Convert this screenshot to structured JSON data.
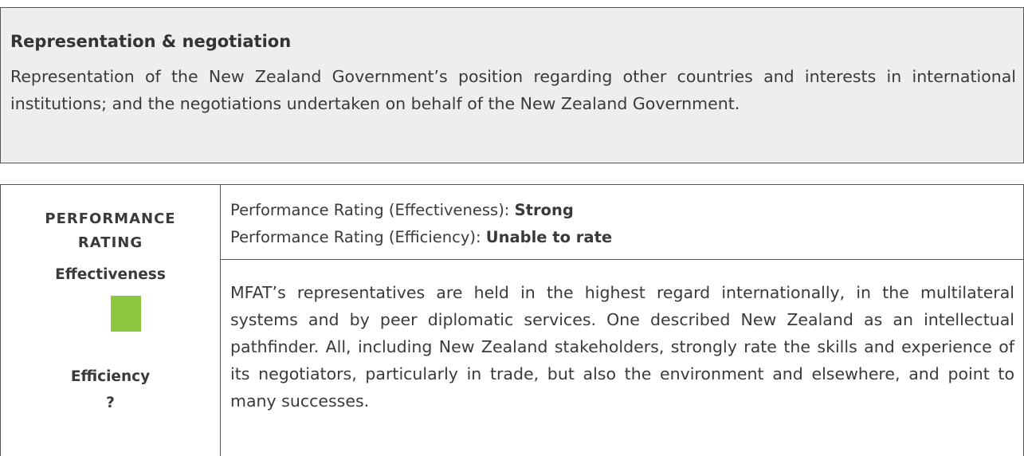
{
  "section": {
    "title": "Representation & negotiation",
    "description": "Representation of the New Zealand Government’s position regarding other countries and interests in international institutions; and the negotiations undertaken on behalf of the New Zealand Government."
  },
  "table": {
    "left": {
      "heading": "PERFORMANCE RATING",
      "effectiveness_label": "Effectiveness",
      "efficiency_label": "Efficiency",
      "efficiency_value": "?"
    },
    "ratings": [
      {
        "label": "Performance Rating (Effectiveness): ",
        "value": "Strong"
      },
      {
        "label": "Performance Rating (Efficiency): ",
        "value": "Unable to rate"
      }
    ],
    "body": "MFAT’s representatives are held in the highest regard internationally, in the multilateral systems and by peer diplomatic services. One described New Zealand as an intellectual pathfinder. All, including New Zealand stakeholders, strongly rate the skills and experience of its negotiators, particularly in trade, but also the environment and elsewhere, and point to many successes."
  }
}
